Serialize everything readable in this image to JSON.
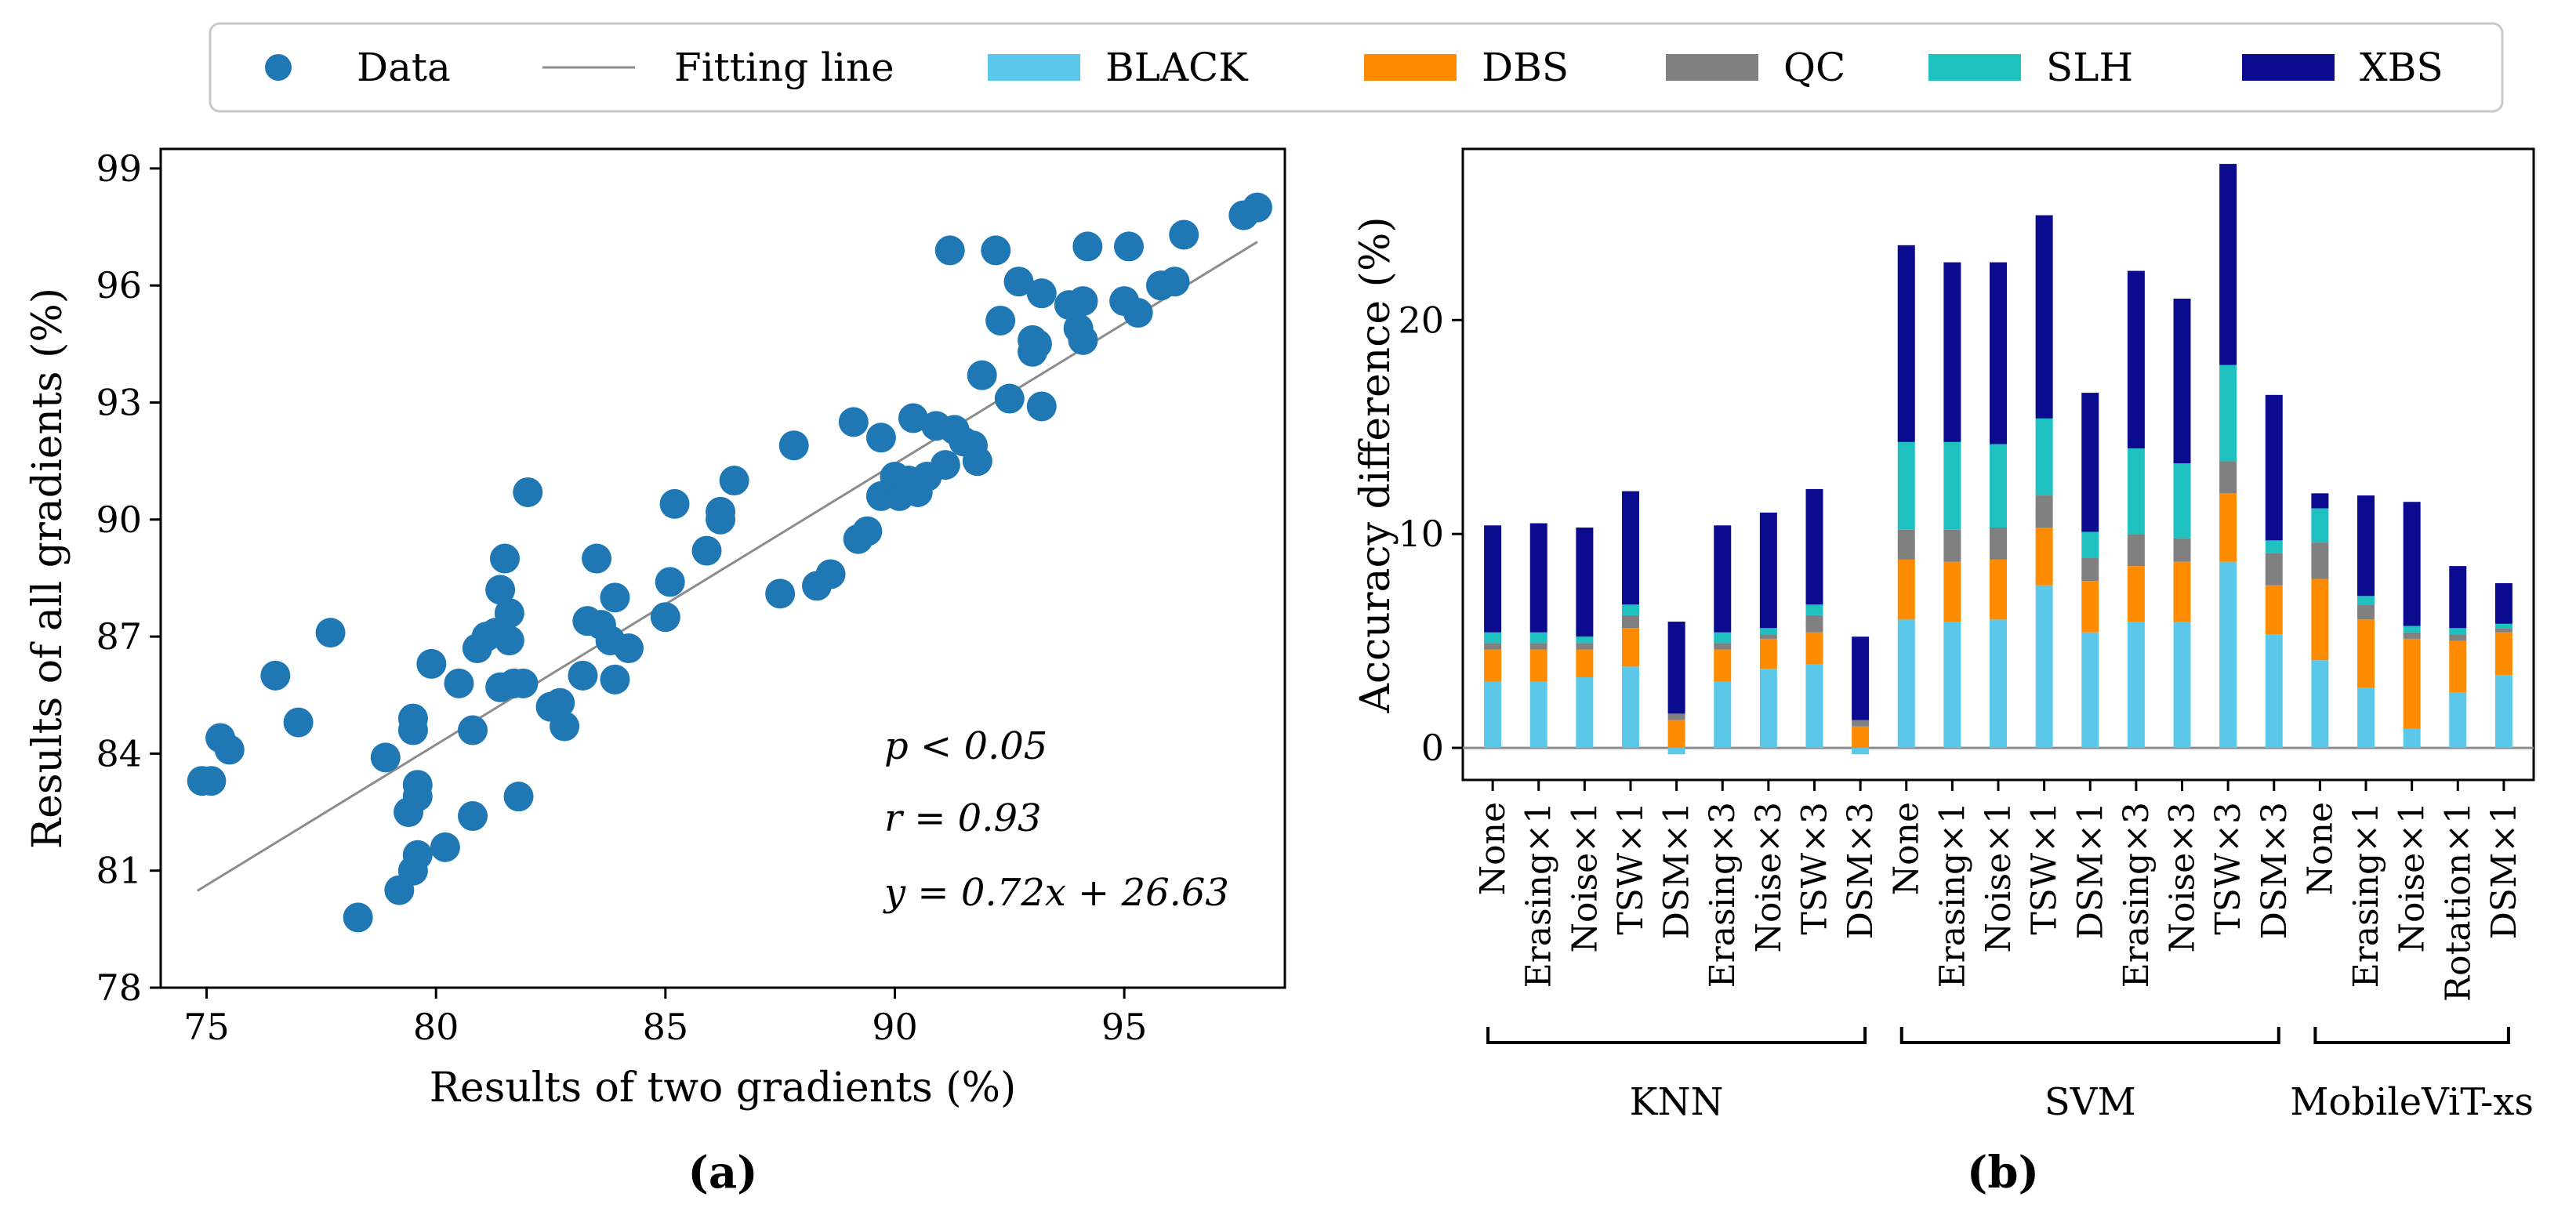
{
  "legend": {
    "entries": [
      {
        "label": "Data",
        "kind": "marker",
        "color": "#1f77b4"
      },
      {
        "label": "Fitting line",
        "kind": "line",
        "color": "#8c8c8c"
      },
      {
        "label": "BLACK",
        "kind": "patch",
        "color": "#5bc8ea"
      },
      {
        "label": "DBS",
        "kind": "patch",
        "color": "#ff8c00"
      },
      {
        "label": "QC",
        "kind": "patch",
        "color": "#808080"
      },
      {
        "label": "SLH",
        "kind": "patch",
        "color": "#1fc0c0"
      },
      {
        "label": "XBS",
        "kind": "patch",
        "color": "#0b0b8f"
      }
    ]
  },
  "panel_labels": {
    "a": "(a)",
    "b": "(b)"
  },
  "chart_data": [
    {
      "type": "scatter",
      "xlabel": "Results of two gradients (%)",
      "ylabel": "Results of all gradients (%)",
      "xlim": [
        74,
        98.5
      ],
      "ylim": [
        78,
        99.5
      ],
      "xticks": [
        75,
        80,
        85,
        90,
        95
      ],
      "yticks": [
        78,
        81,
        84,
        87,
        90,
        93,
        96,
        99
      ],
      "grid": false,
      "marker_color": "#1f77b4",
      "line_color": "#8c8c8c",
      "annotations": [
        "p < 0.05",
        "r = 0.93",
        "y = 0.72x + 26.63"
      ],
      "fit_line": {
        "slope": 0.72,
        "intercept": 26.63,
        "x_range": [
          74.8,
          97.9
        ]
      },
      "points": [
        [
          74.9,
          83.3
        ],
        [
          75.1,
          83.3
        ],
        [
          75.3,
          84.4
        ],
        [
          75.5,
          84.1
        ],
        [
          76.5,
          86.0
        ],
        [
          77.0,
          84.8
        ],
        [
          77.7,
          87.1
        ],
        [
          78.3,
          79.8
        ],
        [
          78.9,
          83.9
        ],
        [
          79.2,
          80.5
        ],
        [
          79.4,
          82.5
        ],
        [
          79.5,
          84.6
        ],
        [
          79.5,
          84.9
        ],
        [
          79.5,
          81.0
        ],
        [
          79.6,
          81.4
        ],
        [
          79.6,
          83.2
        ],
        [
          79.6,
          82.9
        ],
        [
          79.9,
          86.3
        ],
        [
          80.2,
          81.6
        ],
        [
          80.5,
          85.8
        ],
        [
          80.8,
          84.6
        ],
        [
          80.8,
          82.4
        ],
        [
          80.9,
          86.7
        ],
        [
          81.1,
          87.0
        ],
        [
          81.3,
          87.1
        ],
        [
          81.4,
          85.7
        ],
        [
          81.4,
          88.2
        ],
        [
          81.5,
          89.0
        ],
        [
          81.6,
          87.6
        ],
        [
          81.6,
          86.9
        ],
        [
          81.7,
          85.8
        ],
        [
          81.8,
          82.9
        ],
        [
          81.9,
          85.8
        ],
        [
          82.0,
          90.7
        ],
        [
          82.5,
          85.2
        ],
        [
          82.7,
          85.3
        ],
        [
          82.8,
          84.7
        ],
        [
          83.2,
          86.0
        ],
        [
          83.3,
          87.4
        ],
        [
          83.5,
          89.0
        ],
        [
          83.6,
          87.3
        ],
        [
          83.8,
          86.9
        ],
        [
          83.9,
          85.9
        ],
        [
          83.9,
          88.0
        ],
        [
          84.2,
          86.7
        ],
        [
          85.0,
          87.5
        ],
        [
          85.1,
          88.4
        ],
        [
          85.2,
          90.4
        ],
        [
          85.9,
          89.2
        ],
        [
          86.2,
          90.0
        ],
        [
          86.2,
          90.2
        ],
        [
          86.5,
          91.0
        ],
        [
          87.5,
          88.1
        ],
        [
          87.8,
          91.9
        ],
        [
          88.3,
          88.3
        ],
        [
          88.6,
          88.6
        ],
        [
          89.1,
          92.5
        ],
        [
          89.2,
          89.5
        ],
        [
          89.4,
          89.7
        ],
        [
          89.7,
          92.1
        ],
        [
          89.7,
          90.6
        ],
        [
          90.0,
          91.1
        ],
        [
          90.1,
          90.6
        ],
        [
          90.2,
          90.7
        ],
        [
          90.3,
          91.0
        ],
        [
          90.4,
          92.6
        ],
        [
          90.5,
          90.7
        ],
        [
          90.7,
          91.1
        ],
        [
          90.9,
          92.4
        ],
        [
          91.1,
          91.4
        ],
        [
          91.2,
          96.9
        ],
        [
          91.3,
          92.3
        ],
        [
          91.5,
          92.0
        ],
        [
          91.7,
          91.9
        ],
        [
          91.8,
          91.5
        ],
        [
          91.9,
          93.7
        ],
        [
          92.2,
          96.9
        ],
        [
          92.3,
          95.1
        ],
        [
          92.5,
          93.1
        ],
        [
          92.7,
          96.1
        ],
        [
          93.0,
          94.3
        ],
        [
          93.0,
          94.6
        ],
        [
          93.1,
          94.5
        ],
        [
          93.2,
          92.9
        ],
        [
          93.2,
          95.8
        ],
        [
          93.8,
          95.5
        ],
        [
          94.0,
          94.9
        ],
        [
          94.1,
          94.6
        ],
        [
          94.1,
          95.6
        ],
        [
          94.2,
          97.0
        ],
        [
          95.0,
          95.6
        ],
        [
          95.1,
          97.0
        ],
        [
          95.3,
          95.3
        ],
        [
          95.8,
          96.0
        ],
        [
          96.1,
          96.1
        ],
        [
          96.3,
          97.3
        ],
        [
          97.6,
          97.8
        ],
        [
          97.9,
          98.0
        ]
      ]
    },
    {
      "type": "bar",
      "stacked": true,
      "ylabel": "Accuracy difference (%)",
      "ylim": [
        -1.5,
        28
      ],
      "yticks": [
        0,
        10,
        20
      ],
      "grid": false,
      "zero_line": true,
      "categories": [
        "None",
        "Erasing×1",
        "Noise×1",
        "TSW×1",
        "DSM×1",
        "Erasing×3",
        "Noise×3",
        "TSW×3",
        "DSM×3",
        "None",
        "Erasing×1",
        "Noise×1",
        "TSW×1",
        "DSM×1",
        "Erasing×3",
        "Noise×3",
        "TSW×3",
        "DSM×3",
        "None",
        "Erasing×1",
        "Noise×1",
        "Rotation×1",
        "DSM×1"
      ],
      "groups": [
        {
          "name": "KNN",
          "start": 0,
          "end": 8
        },
        {
          "name": "SVM",
          "start": 9,
          "end": 17
        },
        {
          "name": "MobileViT-xs",
          "start": 18,
          "end": 22
        }
      ],
      "series": [
        {
          "name": "BLACK",
          "color": "#5bc8ea",
          "values": [
            3.1,
            3.1,
            3.3,
            3.8,
            -0.3,
            3.1,
            3.7,
            3.9,
            -0.3,
            6.0,
            5.9,
            6.0,
            7.6,
            5.4,
            5.9,
            5.9,
            8.7,
            5.3,
            4.1,
            2.8,
            0.9,
            2.6,
            3.4
          ]
        },
        {
          "name": "DBS",
          "color": "#ff8c00",
          "values": [
            1.5,
            1.5,
            1.3,
            1.8,
            1.3,
            1.5,
            1.4,
            1.5,
            1.0,
            2.8,
            2.8,
            2.8,
            2.7,
            2.4,
            2.6,
            2.8,
            3.2,
            2.3,
            3.8,
            3.2,
            4.2,
            2.4,
            2.0
          ]
        },
        {
          "name": "QC",
          "color": "#808080",
          "values": [
            0.3,
            0.3,
            0.3,
            0.6,
            0.3,
            0.3,
            0.2,
            0.8,
            0.3,
            1.4,
            1.5,
            1.5,
            1.5,
            1.1,
            1.5,
            1.1,
            1.5,
            1.5,
            1.7,
            0.7,
            0.3,
            0.3,
            0.2
          ]
        },
        {
          "name": "SLH",
          "color": "#1fc0c0",
          "values": [
            0.5,
            0.5,
            0.3,
            0.5,
            0.0,
            0.5,
            0.3,
            0.5,
            0.0,
            4.1,
            4.1,
            3.9,
            3.6,
            1.2,
            4.0,
            3.5,
            4.5,
            0.6,
            1.6,
            0.4,
            0.3,
            0.3,
            0.2
          ]
        },
        {
          "name": "XBS",
          "color": "#0b0b8f",
          "values": [
            5.0,
            5.1,
            5.1,
            5.3,
            4.3,
            5.0,
            5.4,
            5.4,
            3.9,
            9.2,
            8.4,
            8.5,
            9.5,
            6.5,
            8.3,
            7.7,
            9.4,
            6.8,
            0.7,
            4.7,
            5.8,
            2.9,
            1.9
          ]
        }
      ]
    }
  ]
}
